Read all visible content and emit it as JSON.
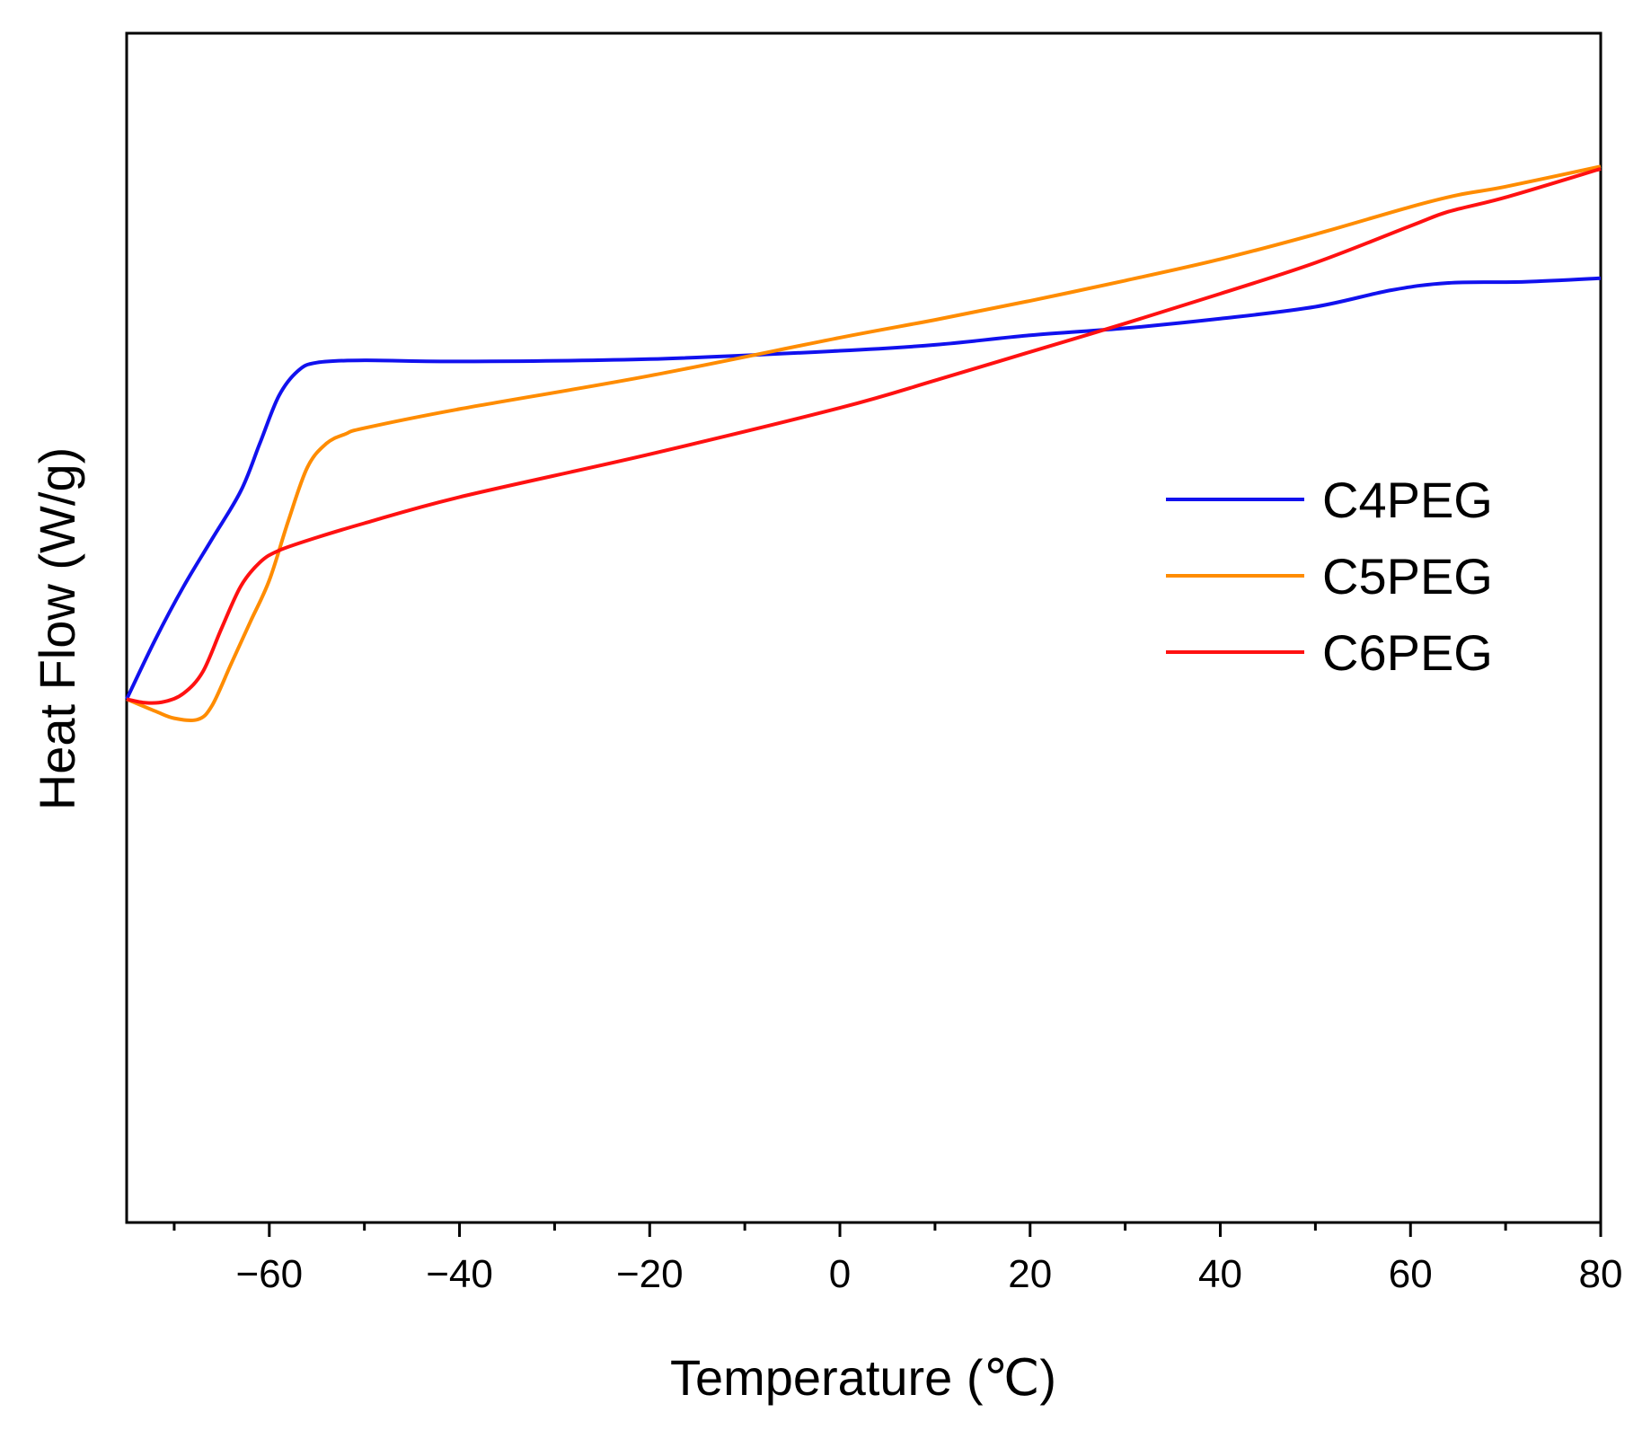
{
  "chart_data": {
    "type": "line",
    "title": "",
    "xlabel": "Temperature (℃)",
    "ylabel": "Heat Flow (W/g)",
    "xlim": [
      -75,
      80
    ],
    "ylim": [
      0,
      100
    ],
    "x_ticks": [
      -60,
      -40,
      -20,
      0,
      20,
      40,
      60,
      80
    ],
    "x_tick_labels": [
      "−60",
      "−40",
      "−20",
      "0",
      "20",
      "40",
      "60",
      "80"
    ],
    "x_minor_ticks": [
      -70,
      -50,
      -30,
      -10,
      10,
      30,
      50,
      70
    ],
    "y_ticks_shown": false,
    "grid": false,
    "legend_position": "center-right",
    "series": [
      {
        "name": "C4PEG",
        "color": "#1111ee",
        "points": [
          [
            -75,
            44
          ],
          [
            -72,
            49
          ],
          [
            -69,
            53.5
          ],
          [
            -66,
            57.5
          ],
          [
            -63,
            61.5
          ],
          [
            -61,
            65.5
          ],
          [
            -59,
            69.5
          ],
          [
            -57,
            71.6
          ],
          [
            -55,
            72.3
          ],
          [
            -50,
            72.5
          ],
          [
            -40,
            72.4
          ],
          [
            -20,
            72.6
          ],
          [
            0,
            73.3
          ],
          [
            10,
            73.8
          ],
          [
            20,
            74.6
          ],
          [
            30,
            75.2
          ],
          [
            40,
            76.0
          ],
          [
            50,
            77.0
          ],
          [
            58,
            78.4
          ],
          [
            64,
            79.0
          ],
          [
            72,
            79.1
          ],
          [
            80,
            79.4
          ]
        ]
      },
      {
        "name": "C5PEG",
        "color": "#ff8c00",
        "points": [
          [
            -75,
            44
          ],
          [
            -72,
            43
          ],
          [
            -70,
            42.4
          ],
          [
            -67.5,
            42.3
          ],
          [
            -66,
            43.5
          ],
          [
            -64,
            47
          ],
          [
            -62,
            50.5
          ],
          [
            -60,
            54
          ],
          [
            -58,
            59
          ],
          [
            -56,
            63.5
          ],
          [
            -54,
            65.5
          ],
          [
            -52,
            66.3
          ],
          [
            -50,
            66.8
          ],
          [
            -40,
            68.4
          ],
          [
            -20,
            71.2
          ],
          [
            0,
            74.4
          ],
          [
            10,
            75.9
          ],
          [
            20,
            77.5
          ],
          [
            30,
            79.2
          ],
          [
            40,
            81.0
          ],
          [
            50,
            83.1
          ],
          [
            60,
            85.4
          ],
          [
            65,
            86.4
          ],
          [
            70,
            87.1
          ],
          [
            80,
            88.8
          ]
        ]
      },
      {
        "name": "C6PEG",
        "color": "#ff1111",
        "points": [
          [
            -75,
            44
          ],
          [
            -73,
            43.7
          ],
          [
            -71,
            43.8
          ],
          [
            -69,
            44.5
          ],
          [
            -67,
            46.3
          ],
          [
            -65,
            50
          ],
          [
            -63,
            53.5
          ],
          [
            -61,
            55.5
          ],
          [
            -59,
            56.5
          ],
          [
            -55,
            57.6
          ],
          [
            -50,
            58.8
          ],
          [
            -40,
            61.0
          ],
          [
            -20,
            64.6
          ],
          [
            0,
            68.5
          ],
          [
            10,
            70.8
          ],
          [
            20,
            73.2
          ],
          [
            30,
            75.6
          ],
          [
            40,
            78.1
          ],
          [
            50,
            80.7
          ],
          [
            60,
            83.8
          ],
          [
            64,
            85.0
          ],
          [
            70,
            86.2
          ],
          [
            80,
            88.6
          ]
        ]
      }
    ]
  }
}
